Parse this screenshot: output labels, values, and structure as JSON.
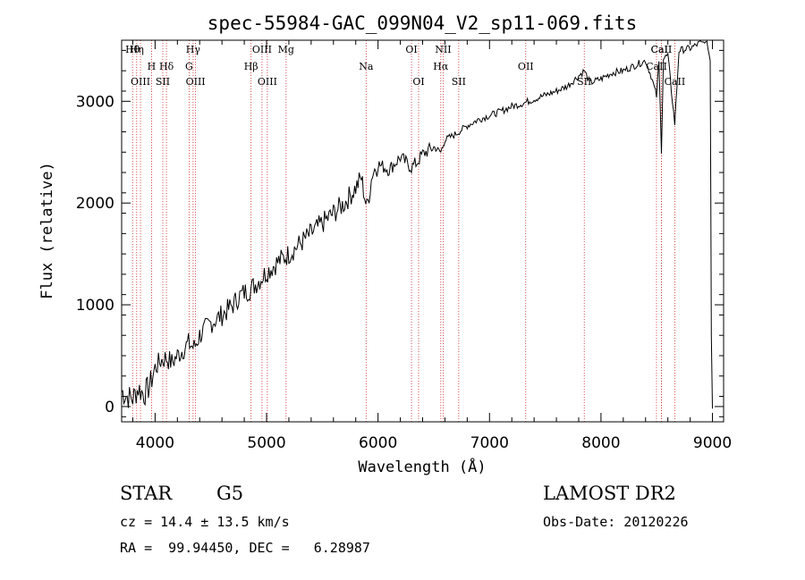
{
  "chart_data": {
    "type": "line",
    "title": "spec-55984-GAC_099N04_V2_sp11-069.fits",
    "xlabel": "Wavelength (Å)",
    "ylabel": "Flux (relative)",
    "xlim": [
      3700,
      9100
    ],
    "ylim": [
      -150,
      3600
    ],
    "x_ticks": [
      4000,
      5000,
      6000,
      7000,
      8000,
      9000
    ],
    "y_ticks": [
      0,
      1000,
      2000,
      3000
    ],
    "grid": false,
    "series": [
      {
        "x": [
          3700,
          3750,
          3800,
          3850,
          3900,
          3950,
          4000,
          4050,
          4100,
          4150,
          4200,
          4250,
          4300,
          4350,
          4400,
          4450,
          4500,
          4550,
          4600,
          4650,
          4700,
          4750,
          4800,
          4850,
          4900,
          4950,
          5000,
          5100,
          5200,
          5300,
          5400,
          5500,
          5600,
          5700,
          5800,
          5850,
          5900,
          5950,
          6000,
          6100,
          6200,
          6300,
          6350,
          6400,
          6500,
          6563,
          6600,
          6700,
          6800,
          6900,
          7000,
          7100,
          7200,
          7300,
          7400,
          7500,
          7600,
          7700,
          7800,
          7850,
          7900,
          8000,
          8100,
          8200,
          8300,
          8400,
          8450,
          8498,
          8520,
          8542,
          8560,
          8600,
          8662,
          8700,
          8800,
          8850,
          8900,
          8950,
          8980,
          8990,
          9000
        ],
        "y": [
          150,
          100,
          80,
          180,
          120,
          200,
          380,
          450,
          480,
          430,
          500,
          560,
          620,
          580,
          700,
          760,
          820,
          860,
          900,
          950,
          1000,
          1080,
          1120,
          1150,
          1200,
          1260,
          1320,
          1420,
          1500,
          1600,
          1700,
          1800,
          1900,
          2000,
          2150,
          2250,
          1950,
          2300,
          2380,
          2330,
          2450,
          2350,
          2400,
          2480,
          2550,
          2500,
          2620,
          2680,
          2760,
          2820,
          2860,
          2900,
          2950,
          2980,
          3020,
          3060,
          3100,
          3150,
          3250,
          3300,
          3180,
          3220,
          3280,
          3300,
          3350,
          3400,
          3250,
          3050,
          3380,
          2520,
          3420,
          3450,
          2780,
          3500,
          3520,
          3550,
          3580,
          3580,
          3400,
          700,
          -20
        ]
      }
    ],
    "spectral_lines": [
      {
        "label": "Hθ",
        "x": 3798
      },
      {
        "label": "H",
        "x": 3968
      },
      {
        "label": "SII",
        "x": 4069
      },
      {
        "label": "Hγ",
        "x": 4341
      },
      {
        "label": "G",
        "x": 4305
      },
      {
        "label": "OIII",
        "x": 3869
      },
      {
        "label": "Hη",
        "x": 3835
      },
      {
        "label": "Hδ",
        "x": 4102
      },
      {
        "label": "OIII",
        "x": 4363
      },
      {
        "label": "OIII",
        "x": 4959
      },
      {
        "label": "Hβ",
        "x": 4861
      },
      {
        "label": "OIII",
        "x": 5007
      },
      {
        "label": "Mg",
        "x": 5175
      },
      {
        "label": "Na",
        "x": 5893
      },
      {
        "label": "OI",
        "x": 6364
      },
      {
        "label": "OI",
        "x": 6300
      },
      {
        "label": "Hα",
        "x": 6563
      },
      {
        "label": "SII",
        "x": 6724
      },
      {
        "label": "NII",
        "x": 6584
      },
      {
        "label": "OII",
        "x": 7325
      },
      {
        "label": "SII",
        "x": 7850
      },
      {
        "label": "CaII",
        "x": 8542
      },
      {
        "label": "CaII",
        "x": 8498
      },
      {
        "label": "CaII",
        "x": 8662
      },
      {
        "label": "CaII",
        "x": 8542
      }
    ]
  },
  "info": {
    "object_class": "STAR",
    "subclass": "G5",
    "survey": "LAMOST DR2",
    "cz": "cz = 14.4 ± 13.5 km/s",
    "obs_date": "Obs-Date: 20120226",
    "coords": "RA =  99.94450, DEC =   6.28987"
  },
  "colors": {
    "spectrum": "#000000",
    "line_marker": "#cc2222",
    "background": "#ffffff"
  }
}
